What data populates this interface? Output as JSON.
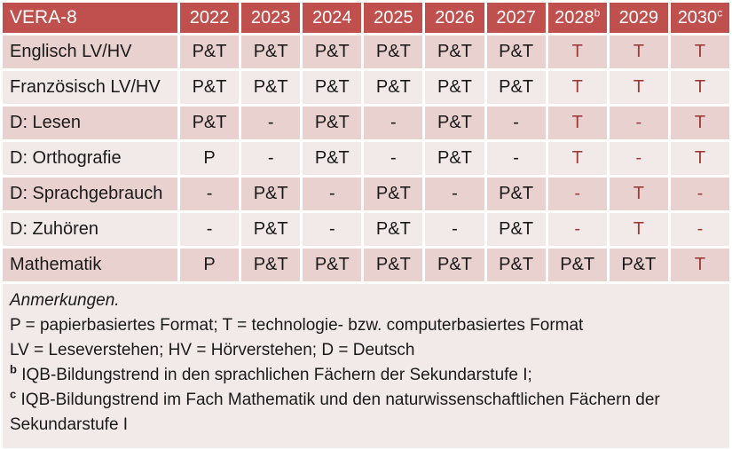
{
  "colors": {
    "header_bg": "#C0504D",
    "header_text": "#FFFFFF",
    "band_dark": "#E9D1D0",
    "band_light": "#F2EAE9",
    "red_text": "#9E3B38"
  },
  "table": {
    "title": "VERA-8",
    "columns": [
      {
        "label": "2022",
        "sup": ""
      },
      {
        "label": "2023",
        "sup": ""
      },
      {
        "label": "2024",
        "sup": ""
      },
      {
        "label": "2025",
        "sup": ""
      },
      {
        "label": "2026",
        "sup": ""
      },
      {
        "label": "2027",
        "sup": ""
      },
      {
        "label": "2028",
        "sup": "b"
      },
      {
        "label": "2029",
        "sup": ""
      },
      {
        "label": "2030",
        "sup": "c"
      }
    ],
    "rows": [
      {
        "label": "Englisch LV/HV",
        "band": "dark",
        "cells": [
          {
            "v": "P&T",
            "red": false
          },
          {
            "v": "P&T",
            "red": false
          },
          {
            "v": "P&T",
            "red": false
          },
          {
            "v": "P&T",
            "red": false
          },
          {
            "v": "P&T",
            "red": false
          },
          {
            "v": "P&T",
            "red": false
          },
          {
            "v": "T",
            "red": true
          },
          {
            "v": "T",
            "red": true
          },
          {
            "v": "T",
            "red": true
          }
        ]
      },
      {
        "label": "Französisch LV/HV",
        "band": "light",
        "cells": [
          {
            "v": "P&T",
            "red": false
          },
          {
            "v": "P&T",
            "red": false
          },
          {
            "v": "P&T",
            "red": false
          },
          {
            "v": "P&T",
            "red": false
          },
          {
            "v": "P&T",
            "red": false
          },
          {
            "v": "P&T",
            "red": false
          },
          {
            "v": "T",
            "red": true
          },
          {
            "v": "T",
            "red": true
          },
          {
            "v": "T",
            "red": true
          }
        ]
      },
      {
        "label": "D: Lesen",
        "band": "dark",
        "cells": [
          {
            "v": "P&T",
            "red": false
          },
          {
            "v": "-",
            "red": false
          },
          {
            "v": "P&T",
            "red": false
          },
          {
            "v": "-",
            "red": false
          },
          {
            "v": "P&T",
            "red": false
          },
          {
            "v": "-",
            "red": false
          },
          {
            "v": "T",
            "red": true
          },
          {
            "v": "-",
            "red": true
          },
          {
            "v": "T",
            "red": true
          }
        ]
      },
      {
        "label": "D: Orthografie",
        "band": "light",
        "cells": [
          {
            "v": "P",
            "red": false
          },
          {
            "v": "-",
            "red": false
          },
          {
            "v": "P&T",
            "red": false
          },
          {
            "v": "-",
            "red": false
          },
          {
            "v": "P&T",
            "red": false
          },
          {
            "v": "-",
            "red": false
          },
          {
            "v": "T",
            "red": true
          },
          {
            "v": "-",
            "red": true
          },
          {
            "v": "T",
            "red": true
          }
        ]
      },
      {
        "label": "D: Sprachgebrauch",
        "band": "dark",
        "cells": [
          {
            "v": "-",
            "red": false
          },
          {
            "v": "P&T",
            "red": false
          },
          {
            "v": "-",
            "red": false
          },
          {
            "v": "P&T",
            "red": false
          },
          {
            "v": "-",
            "red": false
          },
          {
            "v": "P&T",
            "red": false
          },
          {
            "v": "-",
            "red": true
          },
          {
            "v": "T",
            "red": true
          },
          {
            "v": "-",
            "red": true
          }
        ]
      },
      {
        "label": "D: Zuhören",
        "band": "light",
        "cells": [
          {
            "v": "-",
            "red": false
          },
          {
            "v": "P&T",
            "red": false
          },
          {
            "v": "-",
            "red": false
          },
          {
            "v": "P&T",
            "red": false
          },
          {
            "v": "-",
            "red": false
          },
          {
            "v": "P&T",
            "red": false
          },
          {
            "v": "-",
            "red": true
          },
          {
            "v": "T",
            "red": true
          },
          {
            "v": "-",
            "red": true
          }
        ]
      },
      {
        "label": "Mathematik",
        "band": "dark",
        "cells": [
          {
            "v": "P",
            "red": false
          },
          {
            "v": "P&T",
            "red": false
          },
          {
            "v": "P&T",
            "red": false
          },
          {
            "v": "P&T",
            "red": false
          },
          {
            "v": "P&T",
            "red": false
          },
          {
            "v": "P&T",
            "red": false
          },
          {
            "v": "P&T",
            "red": false
          },
          {
            "v": "P&T",
            "red": false
          },
          {
            "v": "T",
            "red": true
          }
        ]
      }
    ]
  },
  "notes": {
    "lines": [
      {
        "name": "notes-heading",
        "italic": true,
        "marker": "",
        "text": "Anmerkungen."
      },
      {
        "name": "note-format-legend",
        "italic": false,
        "marker": "",
        "text": "P = papierbasiertes Format; T = technologie- bzw. computerbasiertes Format"
      },
      {
        "name": "note-abbreviation-legend",
        "italic": false,
        "marker": "",
        "text": "LV = Leseverstehen; HV = Hörverstehen; D = Deutsch"
      },
      {
        "name": "note-footnote-b",
        "italic": false,
        "marker": "b",
        "text": "IQB-Bildungstrend in den sprachlichen Fächern der Sekundarstufe I;"
      },
      {
        "name": "note-footnote-c",
        "italic": false,
        "marker": "c",
        "text": "IQB-Bildungstrend im Fach Mathematik und den naturwissenschaftlichen Fächern der Sekundarstufe I"
      }
    ]
  },
  "chart_data": {
    "type": "table",
    "title": "VERA-8",
    "columns": [
      "VERA-8",
      "2022",
      "2023",
      "2024",
      "2025",
      "2026",
      "2027",
      "2028 (b)",
      "2029",
      "2030 (c)"
    ],
    "rows": [
      [
        "Englisch LV/HV",
        "P&T",
        "P&T",
        "P&T",
        "P&T",
        "P&T",
        "P&T",
        "T",
        "T",
        "T"
      ],
      [
        "Französisch LV/HV",
        "P&T",
        "P&T",
        "P&T",
        "P&T",
        "P&T",
        "P&T",
        "T",
        "T",
        "T"
      ],
      [
        "D: Lesen",
        "P&T",
        "-",
        "P&T",
        "-",
        "P&T",
        "-",
        "T",
        "-",
        "T"
      ],
      [
        "D: Orthografie",
        "P",
        "-",
        "P&T",
        "-",
        "P&T",
        "-",
        "T",
        "-",
        "T"
      ],
      [
        "D: Sprachgebrauch",
        "-",
        "P&T",
        "-",
        "P&T",
        "-",
        "P&T",
        "-",
        "T",
        "-"
      ],
      [
        "D: Zuhören",
        "-",
        "P&T",
        "-",
        "P&T",
        "-",
        "P&T",
        "-",
        "T",
        "-"
      ],
      [
        "Mathematik",
        "P",
        "P&T",
        "P&T",
        "P&T",
        "P&T",
        "P&T",
        "P&T",
        "P&T",
        "T"
      ]
    ]
  }
}
